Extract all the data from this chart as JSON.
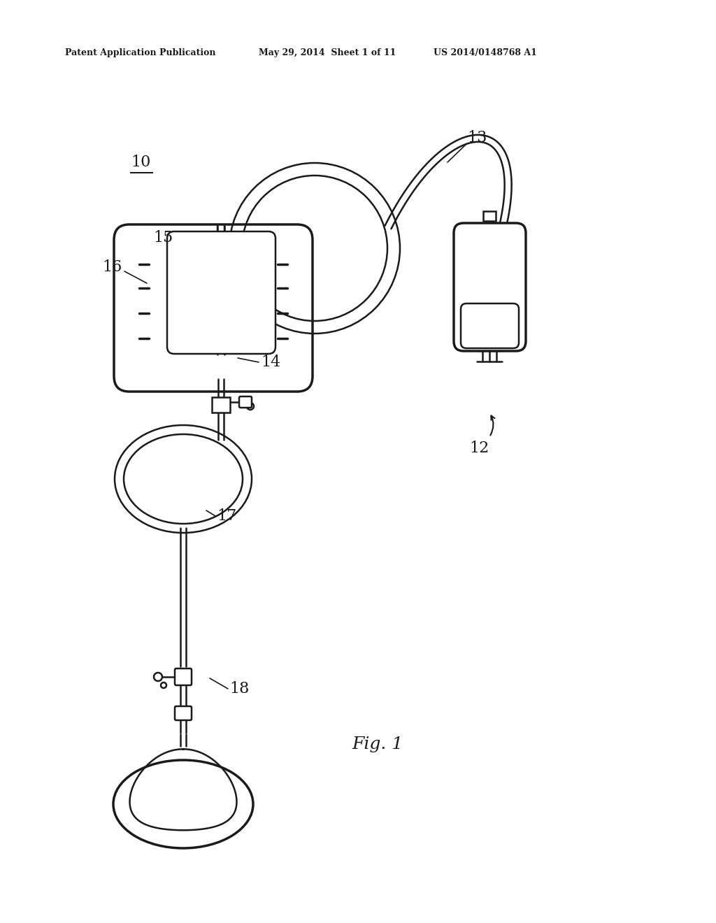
{
  "background_color": "#ffffff",
  "line_color": "#1a1a1a",
  "text_color": "#1a1a1a",
  "header_left": "Patent Application Publication",
  "header_mid": "May 29, 2014  Sheet 1 of 11",
  "header_right": "US 2014/0148768 A1",
  "fig_label": "Fig. 1",
  "label_10": "10",
  "label_12": "12",
  "label_13": "13",
  "label_14": "14",
  "label_15": "15",
  "label_16": "16",
  "label_17": "17",
  "label_18": "18",
  "lw_main": 1.8,
  "lw_thick": 2.5,
  "lw_thin": 1.2
}
